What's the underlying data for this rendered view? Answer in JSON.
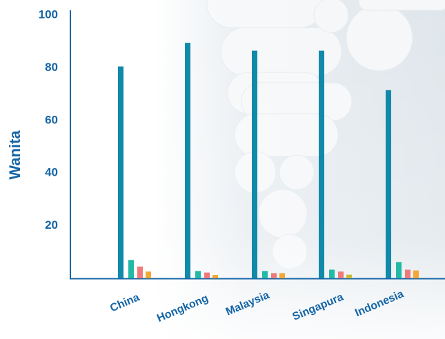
{
  "chart_data": {
    "type": "bar",
    "title": "",
    "ylabel": "Wanita",
    "xlabel": "",
    "ylim": [
      0,
      100
    ],
    "yticks": [
      20,
      40,
      60,
      80,
      100
    ],
    "grid": false,
    "legend": "none",
    "categories": [
      "China",
      "Hongkong",
      "Malaysia",
      "Singapura",
      "Indonesia"
    ],
    "series": [
      {
        "color": "#1189a9",
        "values": [
          80.5,
          89.5,
          86.5,
          86.5,
          71.5
        ]
      },
      {
        "color": "#22b9a6",
        "values": [
          7.0,
          2.8,
          2.8,
          3.3,
          6.2
        ]
      },
      {
        "color": "#ef7a7a",
        "values": [
          4.5,
          2.2,
          2.0,
          2.6,
          3.3
        ]
      },
      {
        "color": "#f3a735",
        "values": [
          2.6,
          1.3,
          2.0,
          1.4,
          3.0
        ]
      }
    ],
    "series_color_exceptions": [
      {
        "series": 3,
        "category": "Singapura",
        "color": "#c9bd35"
      }
    ],
    "background": {
      "base": "#ffffff",
      "photo_tint": "#e9eef2",
      "pill_color": "#f8f9fa"
    }
  }
}
